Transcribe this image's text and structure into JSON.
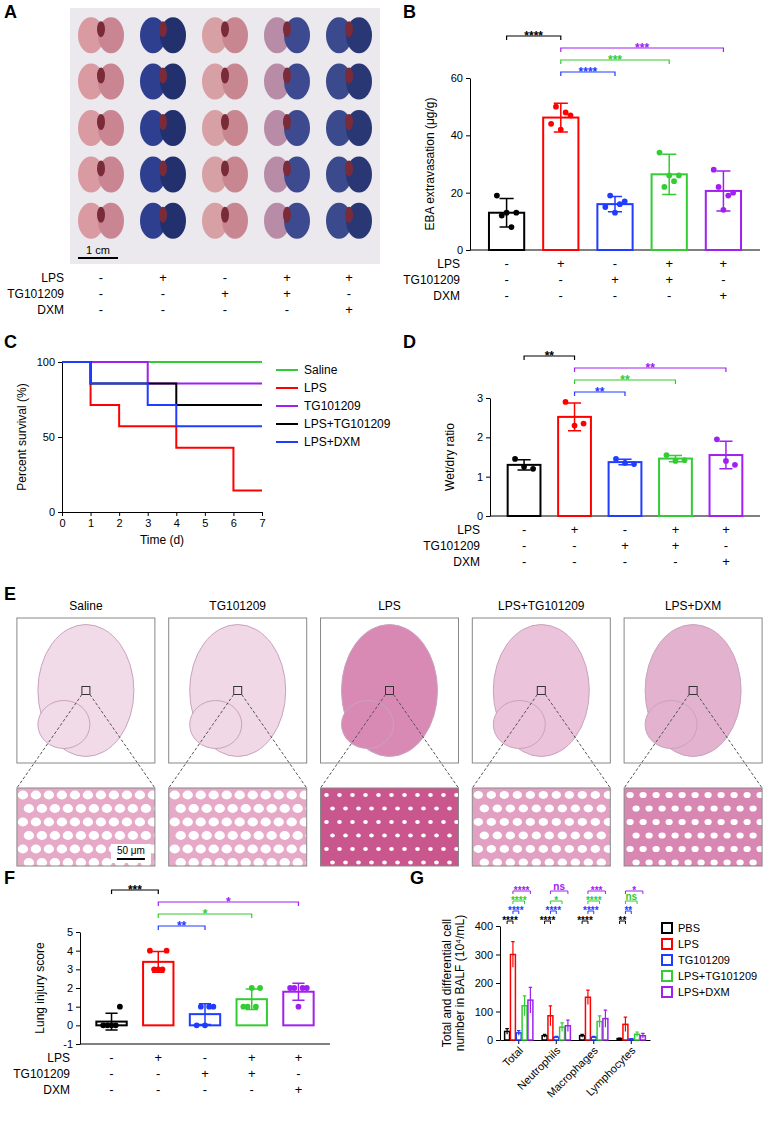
{
  "chart_data": [
    {
      "panel": "A",
      "type": "image",
      "scale_bar": "1 cm",
      "treatments": [
        {
          "name": "LPS",
          "signs": [
            "-",
            "+",
            "-",
            "+",
            "+"
          ]
        },
        {
          "name": "TG101209",
          "signs": [
            "-",
            "-",
            "+",
            "+",
            "-"
          ]
        },
        {
          "name": "DXM",
          "signs": [
            "-",
            "-",
            "-",
            "-",
            "+"
          ]
        }
      ]
    },
    {
      "panel": "B",
      "type": "bar",
      "y_label": "EBA extravasation (μg/g)",
      "categories": [
        null,
        null,
        null,
        null,
        null
      ],
      "values": [
        13,
        46.2,
        16,
        26.4,
        20.6
      ],
      "errors": [
        5,
        5,
        2.7,
        7,
        7
      ],
      "points": [
        [
          19,
          12,
          13,
          8,
          13
        ],
        [
          44,
          50,
          42,
          48,
          47
        ],
        [
          15,
          19,
          13,
          16,
          17
        ],
        [
          34,
          22,
          26,
          24,
          26
        ],
        [
          28,
          22,
          14,
          19,
          20
        ]
      ],
      "colors": [
        "#000000",
        "#ff0000",
        "#1f3cff",
        "#33cc33",
        "#a020f0"
      ],
      "marker": "circle",
      "ylim": [
        0,
        60
      ],
      "yticks": [
        0,
        20,
        40,
        60
      ],
      "comparisons": [
        {
          "between": [
            0,
            1
          ],
          "label": "****",
          "color": "#000000"
        },
        {
          "between": [
            1,
            4
          ],
          "label": "***",
          "color": "#a020f0"
        },
        {
          "between": [
            1,
            3
          ],
          "label": "***",
          "color": "#33cc33"
        },
        {
          "between": [
            1,
            2
          ],
          "label": "****",
          "color": "#1f3cff"
        }
      ],
      "treatments": [
        {
          "name": "LPS",
          "signs": [
            "-",
            "+",
            "-",
            "+",
            "+"
          ]
        },
        {
          "name": "TG101209",
          "signs": [
            "-",
            "-",
            "+",
            "+",
            "-"
          ]
        },
        {
          "name": "DXM",
          "signs": [
            "-",
            "-",
            "-",
            "-",
            "+"
          ]
        }
      ]
    },
    {
      "panel": "C",
      "type": "line",
      "x_label": "Time (d)",
      "y_label": "Percent survival (%)",
      "x": [
        0,
        1,
        2,
        3,
        4,
        5,
        6,
        7
      ],
      "xlim": [
        0,
        7
      ],
      "xticks": [
        0,
        1,
        2,
        3,
        4,
        5,
        6,
        7
      ],
      "ylim": [
        0,
        100
      ],
      "yticks": [
        0,
        50,
        100
      ],
      "line_style": "step",
      "legend": "right",
      "series": [
        {
          "name": "Saline",
          "color": "#33cc33",
          "values": [
            100,
            100,
            100,
            100,
            100,
            100,
            100,
            100
          ]
        },
        {
          "name": "LPS",
          "color": "#ff0000",
          "values": [
            100,
            71.4,
            57.1,
            57.1,
            42.9,
            42.9,
            14.3,
            14.3
          ]
        },
        {
          "name": "TG101209",
          "color": "#a020f0",
          "values": [
            100,
            100,
            100,
            85.7,
            85.7,
            85.7,
            85.7,
            85.7
          ]
        },
        {
          "name": "LPS+TG101209",
          "color": "#000000",
          "values": [
            100,
            85.7,
            85.7,
            85.7,
            71.4,
            71.4,
            71.4,
            71.4
          ]
        },
        {
          "name": "LPS+DXM",
          "color": "#1f3cff",
          "values": [
            100,
            85.7,
            85.7,
            71.4,
            57.1,
            57.1,
            57.1,
            57.1
          ]
        }
      ]
    },
    {
      "panel": "D",
      "type": "bar",
      "y_label": "Wet/dry ratio",
      "categories": [
        null,
        null,
        null,
        null,
        null
      ],
      "values": [
        1.3,
        2.52,
        1.37,
        1.46,
        1.55
      ],
      "errors": [
        0.13,
        0.35,
        0.07,
        0.08,
        0.35
      ],
      "points": [
        [
          1.45,
          1.25,
          1.2
        ],
        [
          2.9,
          2.3,
          2.35
        ],
        [
          1.45,
          1.35,
          1.32
        ],
        [
          1.55,
          1.4,
          1.42
        ],
        [
          1.95,
          1.4,
          1.3
        ]
      ],
      "colors": [
        "#000000",
        "#ff0000",
        "#1f3cff",
        "#33cc33",
        "#a020f0"
      ],
      "marker": "circle",
      "ylim": [
        0,
        3
      ],
      "yticks": [
        0,
        1,
        2,
        3
      ],
      "comparisons": [
        {
          "between": [
            0,
            1
          ],
          "label": "**",
          "color": "#000000"
        },
        {
          "between": [
            1,
            4
          ],
          "label": "**",
          "color": "#a020f0"
        },
        {
          "between": [
            1,
            3
          ],
          "label": "**",
          "color": "#33cc33"
        },
        {
          "between": [
            1,
            2
          ],
          "label": "**",
          "color": "#1f3cff"
        }
      ],
      "treatments": [
        {
          "name": "LPS",
          "signs": [
            "-",
            "+",
            "-",
            "+",
            "+"
          ]
        },
        {
          "name": "TG101209",
          "signs": [
            "-",
            "-",
            "+",
            "+",
            "-"
          ]
        },
        {
          "name": "DXM",
          "signs": [
            "-",
            "-",
            "-",
            "-",
            "+"
          ]
        }
      ]
    },
    {
      "panel": "E",
      "type": "image",
      "titles": [
        "Saline",
        "TG101209",
        "LPS",
        "LPS+TG101209",
        "LPS+DXM"
      ],
      "scale_bar": "50 μm"
    },
    {
      "panel": "F",
      "type": "bar",
      "y_label": "Lung injury score",
      "categories": [
        null,
        null,
        null,
        null,
        null
      ],
      "values": [
        0.2,
        3.4,
        0.6,
        1.4,
        1.8
      ],
      "errors": [
        0.45,
        0.55,
        0.55,
        0.55,
        0.45
      ],
      "points": [
        [
          0,
          0,
          0,
          0,
          1
        ],
        [
          4,
          3,
          3,
          3,
          4
        ],
        [
          0,
          1,
          0,
          1,
          1
        ],
        [
          1,
          1,
          2,
          1,
          2
        ],
        [
          2,
          2,
          1,
          2,
          2
        ]
      ],
      "colors": [
        "#000000",
        "#ff0000",
        "#1f3cff",
        "#33cc33",
        "#a020f0"
      ],
      "marker": "circle",
      "ylim": [
        -1,
        5
      ],
      "yticks": [
        -1,
        0,
        1,
        2,
        3,
        4,
        5
      ],
      "comparisons": [
        {
          "between": [
            0,
            1
          ],
          "label": "***",
          "color": "#000000"
        },
        {
          "between": [
            1,
            4
          ],
          "label": "*",
          "color": "#a020f0"
        },
        {
          "between": [
            1,
            3
          ],
          "label": "*",
          "color": "#33cc33"
        },
        {
          "between": [
            1,
            2
          ],
          "label": "**",
          "color": "#1f3cff"
        }
      ],
      "treatments": [
        {
          "name": "LPS",
          "signs": [
            "-",
            "+",
            "-",
            "+",
            "+"
          ]
        },
        {
          "name": "TG101209",
          "signs": [
            "-",
            "-",
            "+",
            "+",
            "-"
          ]
        },
        {
          "name": "DXM",
          "signs": [
            "-",
            "-",
            "-",
            "-",
            "+"
          ]
        }
      ]
    },
    {
      "panel": "G",
      "type": "bar",
      "y_label": "Total and differential cell number in BALF (10⁴/mL)",
      "categories": [
        "Total",
        "Neutrophils",
        "Macrophages",
        "Lymphocytes"
      ],
      "ylim": [
        0,
        400
      ],
      "yticks": [
        0,
        100,
        200,
        300,
        400
      ],
      "legend": "right",
      "series": [
        {
          "name": "PBS",
          "color": "#000000",
          "values": [
            30,
            15,
            15,
            5
          ],
          "errors": [
            10,
            5,
            5,
            2
          ]
        },
        {
          "name": "LPS",
          "color": "#ff0000",
          "values": [
            300,
            85,
            150,
            55
          ],
          "errors": [
            45,
            35,
            25,
            25
          ]
        },
        {
          "name": "TG101209",
          "color": "#1f3cff",
          "values": [
            25,
            10,
            10,
            3
          ],
          "errors": [
            8,
            3,
            3,
            2
          ]
        },
        {
          "name": "LPS+TG101209",
          "color": "#33cc33",
          "values": [
            120,
            45,
            65,
            20
          ],
          "errors": [
            35,
            15,
            20,
            8
          ]
        },
        {
          "name": "LPS+DXM",
          "color": "#a020f0",
          "values": [
            140,
            50,
            75,
            15
          ],
          "errors": [
            45,
            20,
            30,
            8
          ]
        }
      ],
      "comparisons": [
        {
          "category": 0,
          "between": [
            1,
            4
          ],
          "label": "****",
          "color": "#a020f0"
        },
        {
          "category": 0,
          "between": [
            1,
            3
          ],
          "label": "****",
          "color": "#33cc33"
        },
        {
          "category": 0,
          "between": [
            1,
            2
          ],
          "label": "****",
          "color": "#1f3cff"
        },
        {
          "category": 0,
          "between": [
            0,
            1
          ],
          "label": "****",
          "color": "#000000"
        },
        {
          "category": 1,
          "between": [
            1,
            4
          ],
          "label": "ns",
          "color": "#a020f0"
        },
        {
          "category": 1,
          "between": [
            1,
            3
          ],
          "label": "*",
          "color": "#33cc33"
        },
        {
          "category": 1,
          "between": [
            1,
            2
          ],
          "label": "****",
          "color": "#1f3cff"
        },
        {
          "category": 1,
          "between": [
            0,
            1
          ],
          "label": "****",
          "color": "#000000"
        },
        {
          "category": 2,
          "between": [
            1,
            4
          ],
          "label": "***",
          "color": "#a020f0"
        },
        {
          "category": 2,
          "between": [
            1,
            3
          ],
          "label": "****",
          "color": "#33cc33"
        },
        {
          "category": 2,
          "between": [
            1,
            2
          ],
          "label": "****",
          "color": "#1f3cff"
        },
        {
          "category": 2,
          "between": [
            0,
            1
          ],
          "label": "****",
          "color": "#000000"
        },
        {
          "category": 3,
          "between": [
            1,
            4
          ],
          "label": "*",
          "color": "#a020f0"
        },
        {
          "category": 3,
          "between": [
            1,
            3
          ],
          "label": "ns",
          "color": "#33cc33"
        },
        {
          "category": 3,
          "between": [
            1,
            2
          ],
          "label": "**",
          "color": "#1f3cff"
        },
        {
          "category": 3,
          "between": [
            0,
            1
          ],
          "label": "**",
          "color": "#000000"
        }
      ]
    }
  ]
}
